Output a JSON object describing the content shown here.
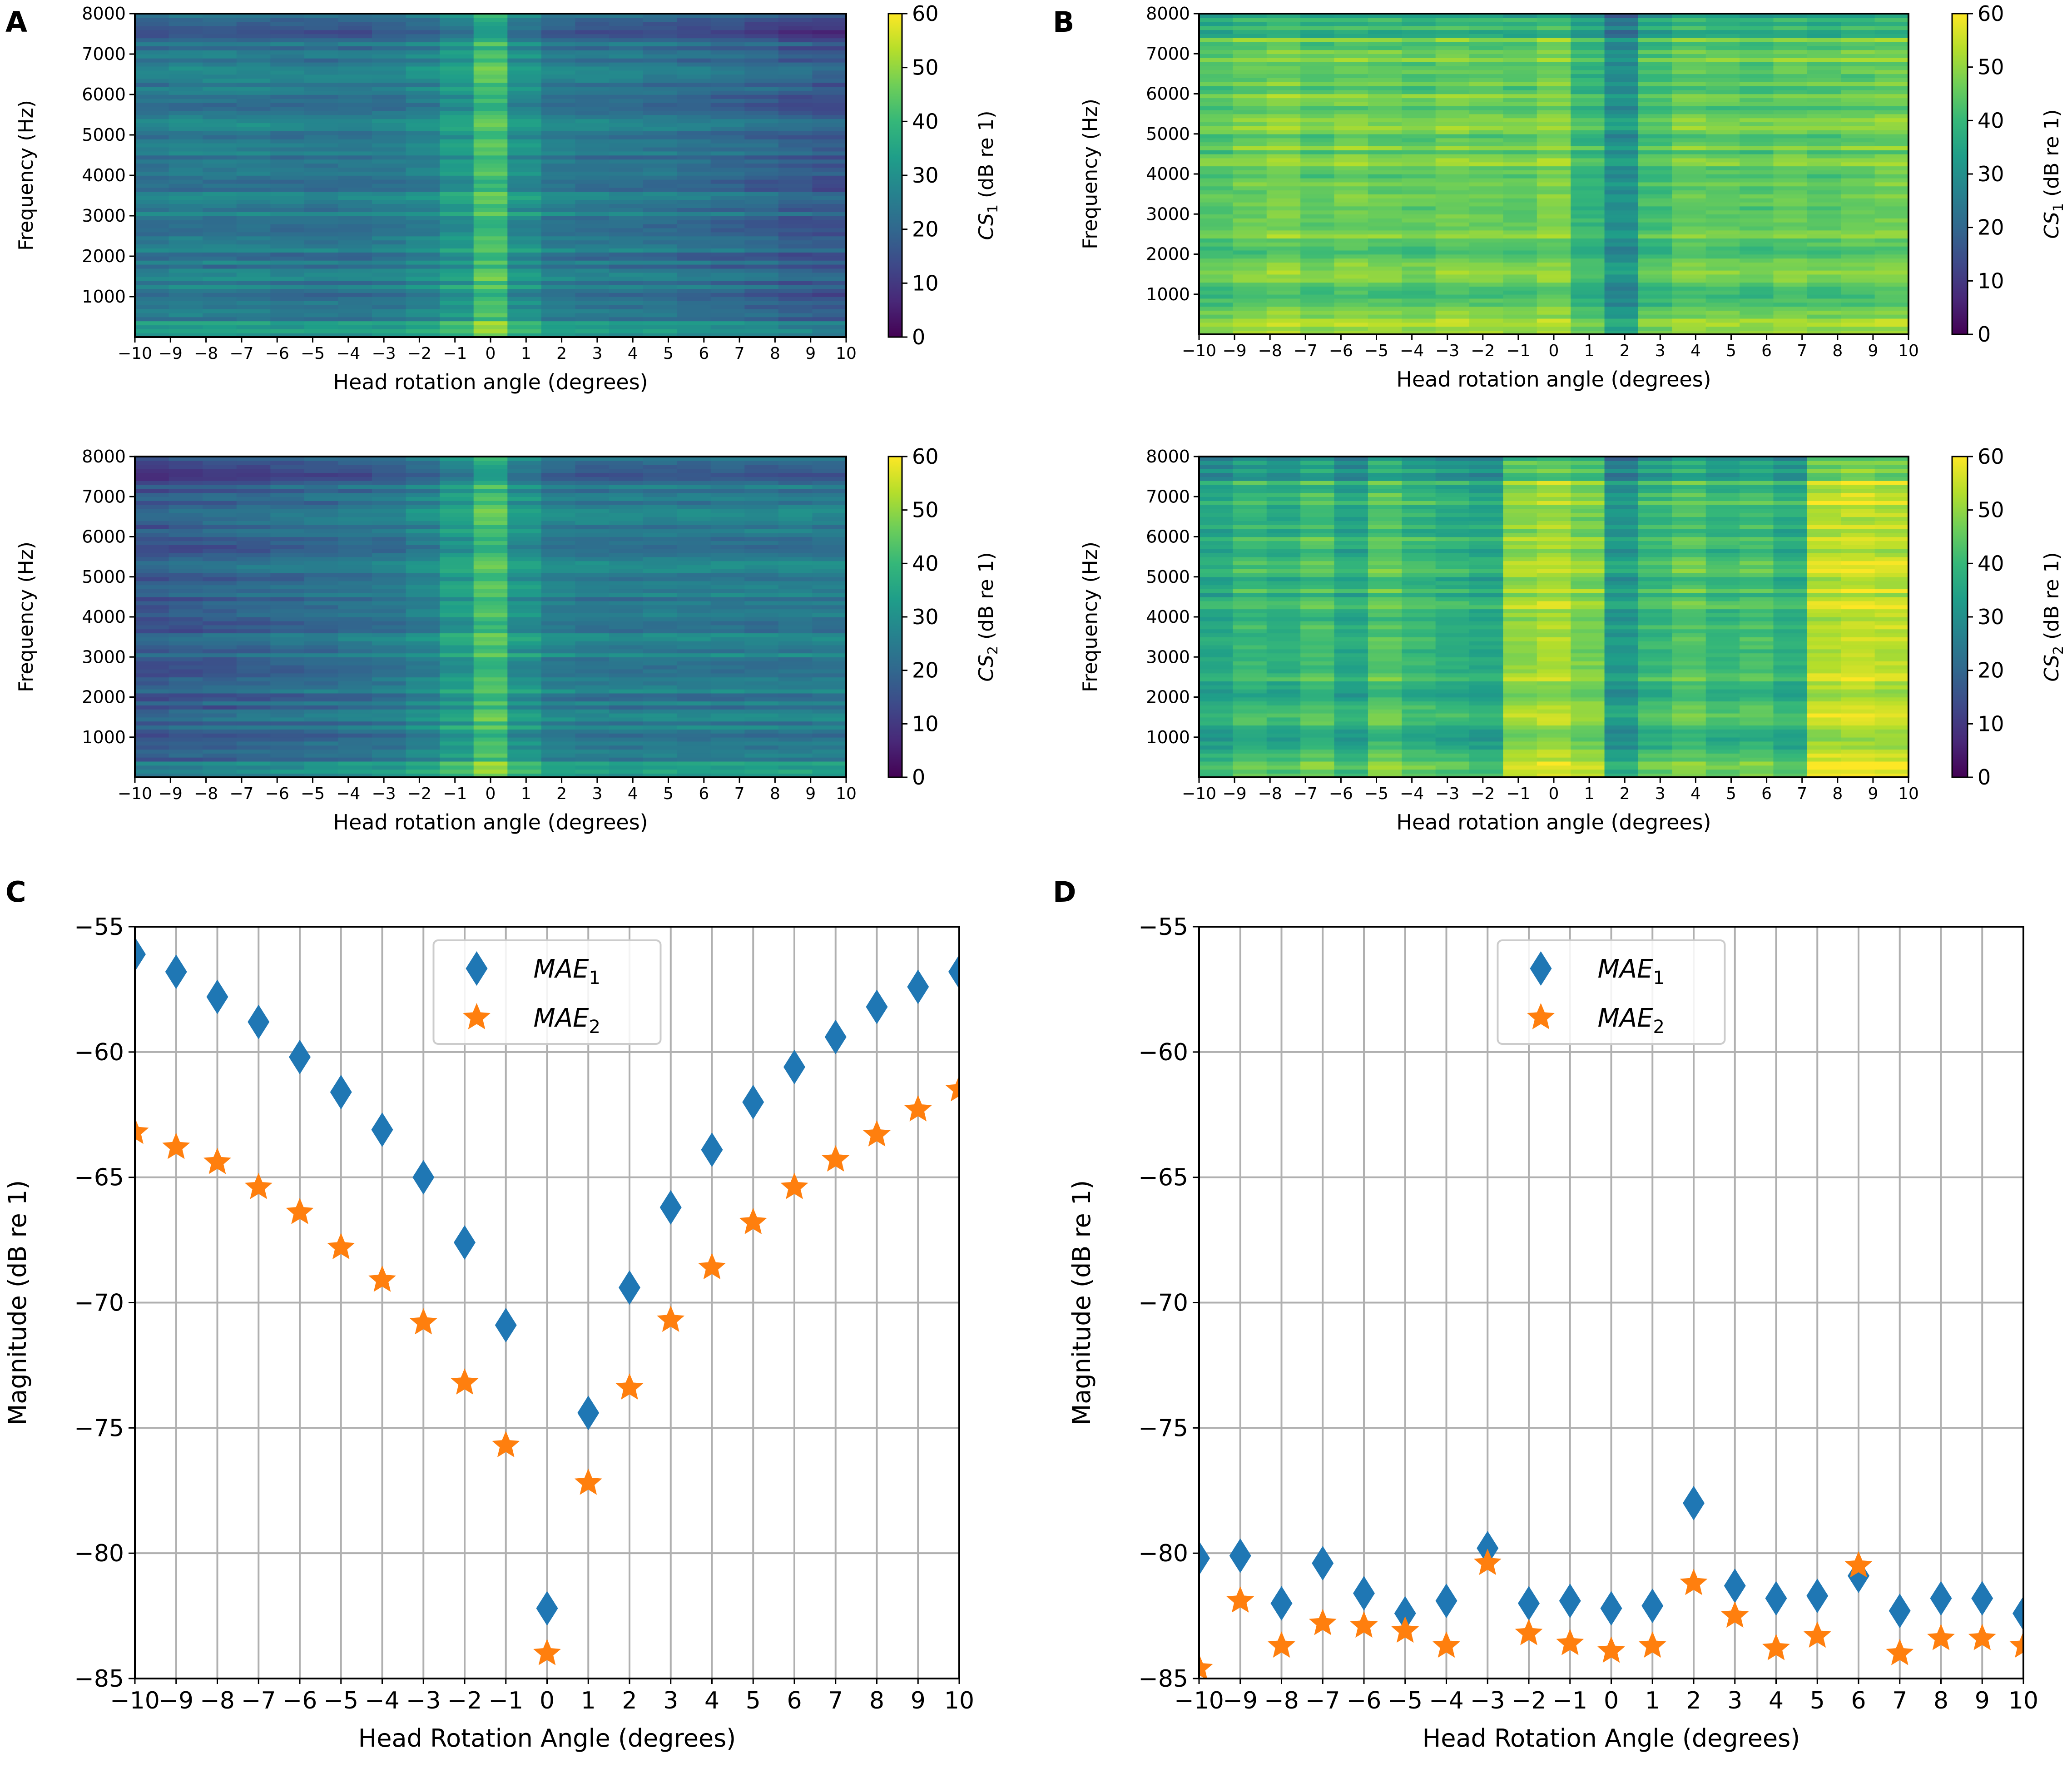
{
  "panel_letters": {
    "A": "A",
    "B": "B",
    "C": "C",
    "D": "D"
  },
  "colors": {
    "mae1": "#1f77b4",
    "mae2": "#ff7f0e",
    "grid": "#b0b0b0",
    "viridis": [
      "#440154",
      "#482878",
      "#3e4989",
      "#31688e",
      "#26828e",
      "#1f9e89",
      "#35b779",
      "#6ece58",
      "#b5de2b",
      "#fde725"
    ]
  },
  "chart_data": [
    {
      "id": "A1",
      "panel": "A",
      "type": "heatmap",
      "xlabel": "Head rotation angle (degrees)",
      "ylabel": "Frequency (Hz)",
      "xlim": [
        -10,
        10
      ],
      "ylim": [
        0,
        8000
      ],
      "xticks": [
        -10,
        -9,
        -8,
        -7,
        -6,
        -5,
        -4,
        -3,
        -2,
        -1,
        0,
        1,
        2,
        3,
        4,
        5,
        6,
        7,
        8,
        9,
        10
      ],
      "xtick_labels": [
        "−10",
        "−9",
        "−8",
        "−7",
        "−6",
        "−5",
        "−4",
        "−3",
        "−2",
        "−1",
        "0",
        "1",
        "2",
        "3",
        "4",
        "5",
        "6",
        "7",
        "8",
        "9",
        "10"
      ],
      "yticks": [
        1000,
        2000,
        3000,
        4000,
        5000,
        6000,
        7000,
        8000
      ],
      "ytick_labels": [
        "1000",
        "2000",
        "3000",
        "4000",
        "5000",
        "6000",
        "7000",
        "8000"
      ],
      "colorbar": {
        "label_base": "CS",
        "label_sub": "1",
        "label_rest": " (dB re 1)",
        "range": [
          0,
          60
        ],
        "ticks": [
          0,
          10,
          20,
          30,
          40,
          50,
          60
        ],
        "tick_labels": [
          "0",
          "10",
          "20",
          "30",
          "40",
          "50",
          "60"
        ]
      },
      "angle_levels": [
        24,
        25,
        25,
        25,
        24,
        24,
        24,
        25,
        27,
        32,
        42,
        30,
        25,
        24,
        24,
        23,
        22,
        21,
        20,
        18,
        17
      ]
    },
    {
      "id": "A2",
      "panel": "A",
      "type": "heatmap",
      "xlabel": "Head rotation angle (degrees)",
      "ylabel": "Frequency (Hz)",
      "xlim": [
        -10,
        10
      ],
      "ylim": [
        0,
        8000
      ],
      "xticks": [
        -10,
        -9,
        -8,
        -7,
        -6,
        -5,
        -4,
        -3,
        -2,
        -1,
        0,
        1,
        2,
        3,
        4,
        5,
        6,
        7,
        8,
        9,
        10
      ],
      "xtick_labels": [
        "−10",
        "−9",
        "−8",
        "−7",
        "−6",
        "−5",
        "−4",
        "−3",
        "−2",
        "−1",
        "0",
        "1",
        "2",
        "3",
        "4",
        "5",
        "6",
        "7",
        "8",
        "9",
        "10"
      ],
      "yticks": [
        1000,
        2000,
        3000,
        4000,
        5000,
        6000,
        7000,
        8000
      ],
      "ytick_labels": [
        "1000",
        "2000",
        "3000",
        "4000",
        "5000",
        "6000",
        "7000",
        "8000"
      ],
      "colorbar": {
        "label_base": "CS",
        "label_sub": "2",
        "label_rest": " (dB re 1)",
        "range": [
          0,
          60
        ],
        "ticks": [
          0,
          10,
          20,
          30,
          40,
          50,
          60
        ],
        "tick_labels": [
          "0",
          "10",
          "20",
          "30",
          "40",
          "50",
          "60"
        ]
      },
      "angle_levels": [
        17,
        18,
        19,
        20,
        21,
        22,
        23,
        24,
        27,
        33,
        42,
        31,
        26,
        25,
        25,
        25,
        25,
        25,
        25,
        25,
        25
      ]
    },
    {
      "id": "B1",
      "panel": "B",
      "type": "heatmap",
      "xlabel": "Head rotation angle (degrees)",
      "ylabel": "Frequency (Hz)",
      "xlim": [
        -10,
        10
      ],
      "ylim": [
        0,
        8000
      ],
      "xticks": [
        -10,
        -9,
        -8,
        -7,
        -6,
        -5,
        -4,
        -3,
        -2,
        -1,
        0,
        1,
        2,
        3,
        4,
        5,
        6,
        7,
        8,
        9,
        10
      ],
      "xtick_labels": [
        "−10",
        "−9",
        "−8",
        "−7",
        "−6",
        "−5",
        "−4",
        "−3",
        "−2",
        "−1",
        "0",
        "1",
        "2",
        "3",
        "4",
        "5",
        "6",
        "7",
        "8",
        "9",
        "10"
      ],
      "yticks": [
        1000,
        2000,
        3000,
        4000,
        5000,
        6000,
        7000,
        8000
      ],
      "ytick_labels": [
        "1000",
        "2000",
        "3000",
        "4000",
        "5000",
        "6000",
        "7000",
        "8000"
      ],
      "colorbar": {
        "label_base": "CS",
        "label_sub": "1",
        "label_rest": " (dB re 1)",
        "range": [
          0,
          60
        ],
        "ticks": [
          0,
          10,
          20,
          30,
          40,
          50,
          60
        ],
        "tick_labels": [
          "0",
          "10",
          "20",
          "30",
          "40",
          "50",
          "60"
        ]
      },
      "angle_levels": [
        44,
        46,
        48,
        45,
        47,
        46,
        45,
        47,
        46,
        45,
        48,
        40,
        30,
        42,
        46,
        45,
        44,
        46,
        45,
        46,
        47
      ]
    },
    {
      "id": "B2",
      "panel": "B",
      "type": "heatmap",
      "xlabel": "Head rotation angle (degrees)",
      "ylabel": "Frequency (Hz)",
      "xlim": [
        -10,
        10
      ],
      "ylim": [
        0,
        8000
      ],
      "xticks": [
        -10,
        -9,
        -8,
        -7,
        -6,
        -5,
        -4,
        -3,
        -2,
        -1,
        0,
        1,
        2,
        3,
        4,
        5,
        6,
        7,
        8,
        9,
        10
      ],
      "xtick_labels": [
        "−10",
        "−9",
        "−8",
        "−7",
        "−6",
        "−5",
        "−4",
        "−3",
        "−2",
        "−1",
        "0",
        "1",
        "2",
        "3",
        "4",
        "5",
        "6",
        "7",
        "8",
        "9",
        "10"
      ],
      "yticks": [
        1000,
        2000,
        3000,
        4000,
        5000,
        6000,
        7000,
        8000
      ],
      "ytick_labels": [
        "1000",
        "2000",
        "3000",
        "4000",
        "5000",
        "6000",
        "7000",
        "8000"
      ],
      "colorbar": {
        "label_base": "CS",
        "label_sub": "2",
        "label_rest": " (dB re 1)",
        "range": [
          0,
          60
        ],
        "ticks": [
          0,
          10,
          20,
          30,
          40,
          50,
          60
        ],
        "tick_labels": [
          "0",
          "10",
          "20",
          "30",
          "40",
          "50",
          "60"
        ]
      },
      "angle_levels": [
        36,
        40,
        38,
        42,
        36,
        44,
        40,
        38,
        36,
        50,
        52,
        48,
        32,
        40,
        44,
        40,
        42,
        38,
        54,
        55,
        54
      ]
    },
    {
      "id": "C",
      "panel": "C",
      "type": "scatter",
      "xlabel": "Head Rotation Angle (degrees)",
      "ylabel": "Magnitude (dB re 1)",
      "xlim": [
        -10,
        10
      ],
      "ylim": [
        -85,
        -55
      ],
      "xticks": [
        -10,
        -9,
        -8,
        -7,
        -6,
        -5,
        -4,
        -3,
        -2,
        -1,
        0,
        1,
        2,
        3,
        4,
        5,
        6,
        7,
        8,
        9,
        10
      ],
      "xtick_labels": [
        "−10",
        "−9",
        "−8",
        "−7",
        "−6",
        "−5",
        "−4",
        "−3",
        "−2",
        "−1",
        "0",
        "1",
        "2",
        "3",
        "4",
        "5",
        "6",
        "7",
        "8",
        "9",
        "10"
      ],
      "yticks": [
        -55,
        -60,
        -65,
        -70,
        -75,
        -80,
        -85
      ],
      "ytick_labels": [
        "−55",
        "−60",
        "−65",
        "−70",
        "−75",
        "−80",
        "−85"
      ],
      "grid": true,
      "legend": "top-center",
      "x": [
        -10,
        -9,
        -8,
        -7,
        -6,
        -5,
        -4,
        -3,
        -2,
        -1,
        0,
        1,
        2,
        3,
        4,
        5,
        6,
        7,
        8,
        9,
        10
      ],
      "series": [
        {
          "name_base": "MAE",
          "name_sub": "1",
          "marker": "diamond",
          "values": [
            -56.1,
            -56.8,
            -57.8,
            -58.8,
            -60.2,
            -61.6,
            -63.1,
            -65.0,
            -67.6,
            -70.9,
            -82.2,
            -74.4,
            -69.4,
            -66.2,
            -63.9,
            -62.0,
            -60.6,
            -59.4,
            -58.2,
            -57.4,
            -56.8
          ]
        },
        {
          "name_base": "MAE",
          "name_sub": "2",
          "marker": "star",
          "values": [
            -63.2,
            -63.8,
            -64.4,
            -65.4,
            -66.4,
            -67.8,
            -69.1,
            -70.8,
            -73.2,
            -75.7,
            -84.0,
            -77.2,
            -73.4,
            -70.7,
            -68.6,
            -66.8,
            -65.4,
            -64.3,
            -63.3,
            -62.3,
            -61.5
          ]
        }
      ]
    },
    {
      "id": "D",
      "panel": "D",
      "type": "scatter",
      "xlabel": "Head Rotation Angle (degrees)",
      "ylabel": "Magnitude (dB re 1)",
      "xlim": [
        -10,
        10
      ],
      "ylim": [
        -85,
        -55
      ],
      "xticks": [
        -10,
        -9,
        -8,
        -7,
        -6,
        -5,
        -4,
        -3,
        -2,
        -1,
        0,
        1,
        2,
        3,
        4,
        5,
        6,
        7,
        8,
        9,
        10
      ],
      "xtick_labels": [
        "−10",
        "−9",
        "−8",
        "−7",
        "−6",
        "−5",
        "−4",
        "−3",
        "−2",
        "−1",
        "0",
        "1",
        "2",
        "3",
        "4",
        "5",
        "6",
        "7",
        "8",
        "9",
        "10"
      ],
      "yticks": [
        -55,
        -60,
        -65,
        -70,
        -75,
        -80,
        -85
      ],
      "ytick_labels": [
        "−55",
        "−60",
        "−65",
        "−70",
        "−75",
        "−80",
        "−85"
      ],
      "grid": true,
      "legend": "top-center",
      "x": [
        -10,
        -9,
        -8,
        -7,
        -6,
        -5,
        -4,
        -3,
        -2,
        -1,
        0,
        1,
        2,
        3,
        4,
        5,
        6,
        7,
        8,
        9,
        10
      ],
      "series": [
        {
          "name_base": "MAE",
          "name_sub": "1",
          "marker": "diamond",
          "values": [
            -80.2,
            -80.1,
            -82.0,
            -80.4,
            -81.6,
            -82.4,
            -81.9,
            -79.8,
            -82.0,
            -81.9,
            -82.2,
            -82.1,
            -78.0,
            -81.3,
            -81.8,
            -81.7,
            -80.9,
            -82.3,
            -81.8,
            -81.8,
            -82.4
          ]
        },
        {
          "name_base": "MAE",
          "name_sub": "2",
          "marker": "star",
          "values": [
            -84.6,
            -81.9,
            -83.7,
            -82.8,
            -82.9,
            -83.1,
            -83.7,
            -80.4,
            -83.2,
            -83.6,
            -83.9,
            -83.7,
            -81.2,
            -82.5,
            -83.8,
            -83.3,
            -80.5,
            -84.0,
            -83.4,
            -83.4,
            -83.7
          ]
        }
      ]
    }
  ]
}
